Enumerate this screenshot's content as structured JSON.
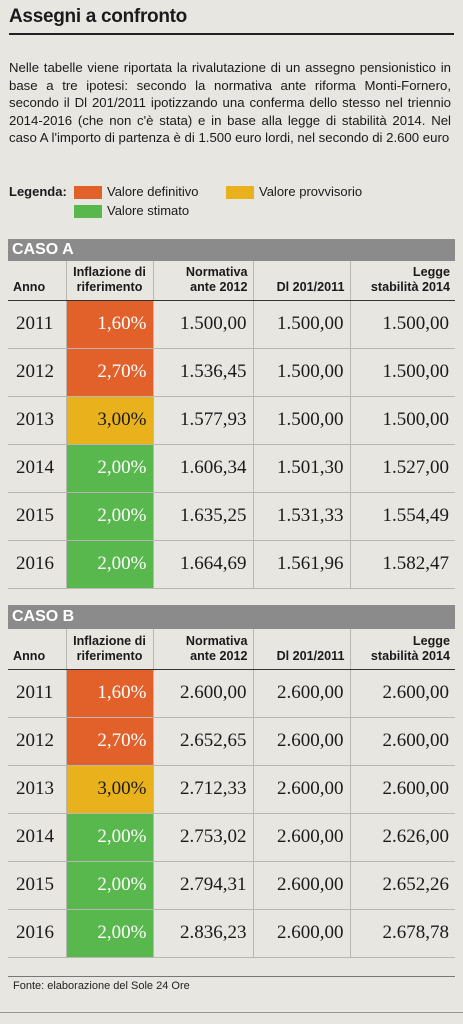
{
  "title": "Assegni a confronto",
  "intro": "Nelle tabelle viene riportata la rivalutazione di un assegno pensionistico in base a tre ipotesi: secondo la normativa ante riforma Monti-Fornero, secondo il Dl 201/2011 ipotizzando una conferma dello stesso nel triennio 2014-2016 (che non c'è stata) e in base alla legge di stabilità 2014. Nel caso A l'importo di partenza è di 1.500 euro lordi, nel secondo di 2.600 euro",
  "legend": {
    "label": "Legenda:",
    "items": [
      {
        "text": "Valore definitivo",
        "color": "#e2602a"
      },
      {
        "text": "Valore provvisorio",
        "color": "#e9b21c"
      },
      {
        "text": "Valore stimato",
        "color": "#58b84d"
      }
    ]
  },
  "headers": {
    "anno": "Anno",
    "inflazione_1": "Inflazione di",
    "inflazione_2": "riferimento",
    "normativa_1": "Normativa",
    "normativa_2": "ante 2012",
    "dl": "Dl 201/2011",
    "legge_1": "Legge",
    "legge_2": "stabilità 2014"
  },
  "caso_a": {
    "label": "CASO A",
    "rows": [
      {
        "anno": "2011",
        "inflazione": "1,60%",
        "status": "def",
        "normativa": "1.500,00",
        "dl": "1.500,00",
        "legge": "1.500,00"
      },
      {
        "anno": "2012",
        "inflazione": "2,70%",
        "status": "def",
        "normativa": "1.536,45",
        "dl": "1.500,00",
        "legge": "1.500,00"
      },
      {
        "anno": "2013",
        "inflazione": "3,00%",
        "status": "prov",
        "normativa": "1.577,93",
        "dl": "1.500,00",
        "legge": "1.500,00"
      },
      {
        "anno": "2014",
        "inflazione": "2,00%",
        "status": "est",
        "normativa": "1.606,34",
        "dl": "1.501,30",
        "legge": "1.527,00"
      },
      {
        "anno": "2015",
        "inflazione": "2,00%",
        "status": "est",
        "normativa": "1.635,25",
        "dl": "1.531,33",
        "legge": "1.554,49"
      },
      {
        "anno": "2016",
        "inflazione": "2,00%",
        "status": "est",
        "normativa": "1.664,69",
        "dl": "1.561,96",
        "legge": "1.582,47"
      }
    ]
  },
  "caso_b": {
    "label": "CASO B",
    "rows": [
      {
        "anno": "2011",
        "inflazione": "1,60%",
        "status": "def",
        "normativa": "2.600,00",
        "dl": "2.600,00",
        "legge": "2.600,00"
      },
      {
        "anno": "2012",
        "inflazione": "2,70%",
        "status": "def",
        "normativa": "2.652,65",
        "dl": "2.600,00",
        "legge": "2.600,00"
      },
      {
        "anno": "2013",
        "inflazione": "3,00%",
        "status": "prov",
        "normativa": "2.712,33",
        "dl": "2.600,00",
        "legge": "2.600,00"
      },
      {
        "anno": "2014",
        "inflazione": "2,00%",
        "status": "est",
        "normativa": "2.753,02",
        "dl": "2.600,00",
        "legge": "2.626,00"
      },
      {
        "anno": "2015",
        "inflazione": "2,00%",
        "status": "est",
        "normativa": "2.794,31",
        "dl": "2.600,00",
        "legge": "2.652,26"
      },
      {
        "anno": "2016",
        "inflazione": "2,00%",
        "status": "est",
        "normativa": "2.836,23",
        "dl": "2.600,00",
        "legge": "2.678,78"
      }
    ]
  },
  "footer": "Fonte: elaborazione del Sole 24 Ore"
}
